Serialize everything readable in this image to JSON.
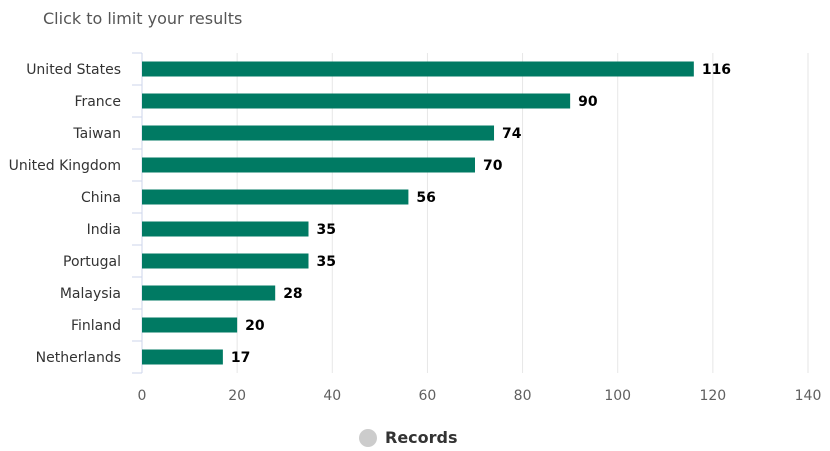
{
  "hint_text": "Click to limit your results",
  "colors": {
    "bar": "#007a63",
    "grid": "#e6e6e6",
    "legend_marker": "#cccccc"
  },
  "chart_data": {
    "type": "bar",
    "orientation": "horizontal",
    "categories": [
      "United States",
      "France",
      "Taiwan",
      "United Kingdom",
      "China",
      "India",
      "Portugal",
      "Malaysia",
      "Finland",
      "Netherlands"
    ],
    "series": [
      {
        "name": "Records",
        "values": [
          116,
          90,
          74,
          70,
          56,
          35,
          35,
          28,
          20,
          17
        ]
      }
    ],
    "xticks": [
      "0",
      "20",
      "40",
      "60",
      "80",
      "100",
      "120",
      "140"
    ],
    "xlim": [
      0,
      140
    ],
    "grid": true,
    "legend": "bottom-center"
  },
  "legend": {
    "label": "Records",
    "marker_icon": "circle-icon"
  }
}
